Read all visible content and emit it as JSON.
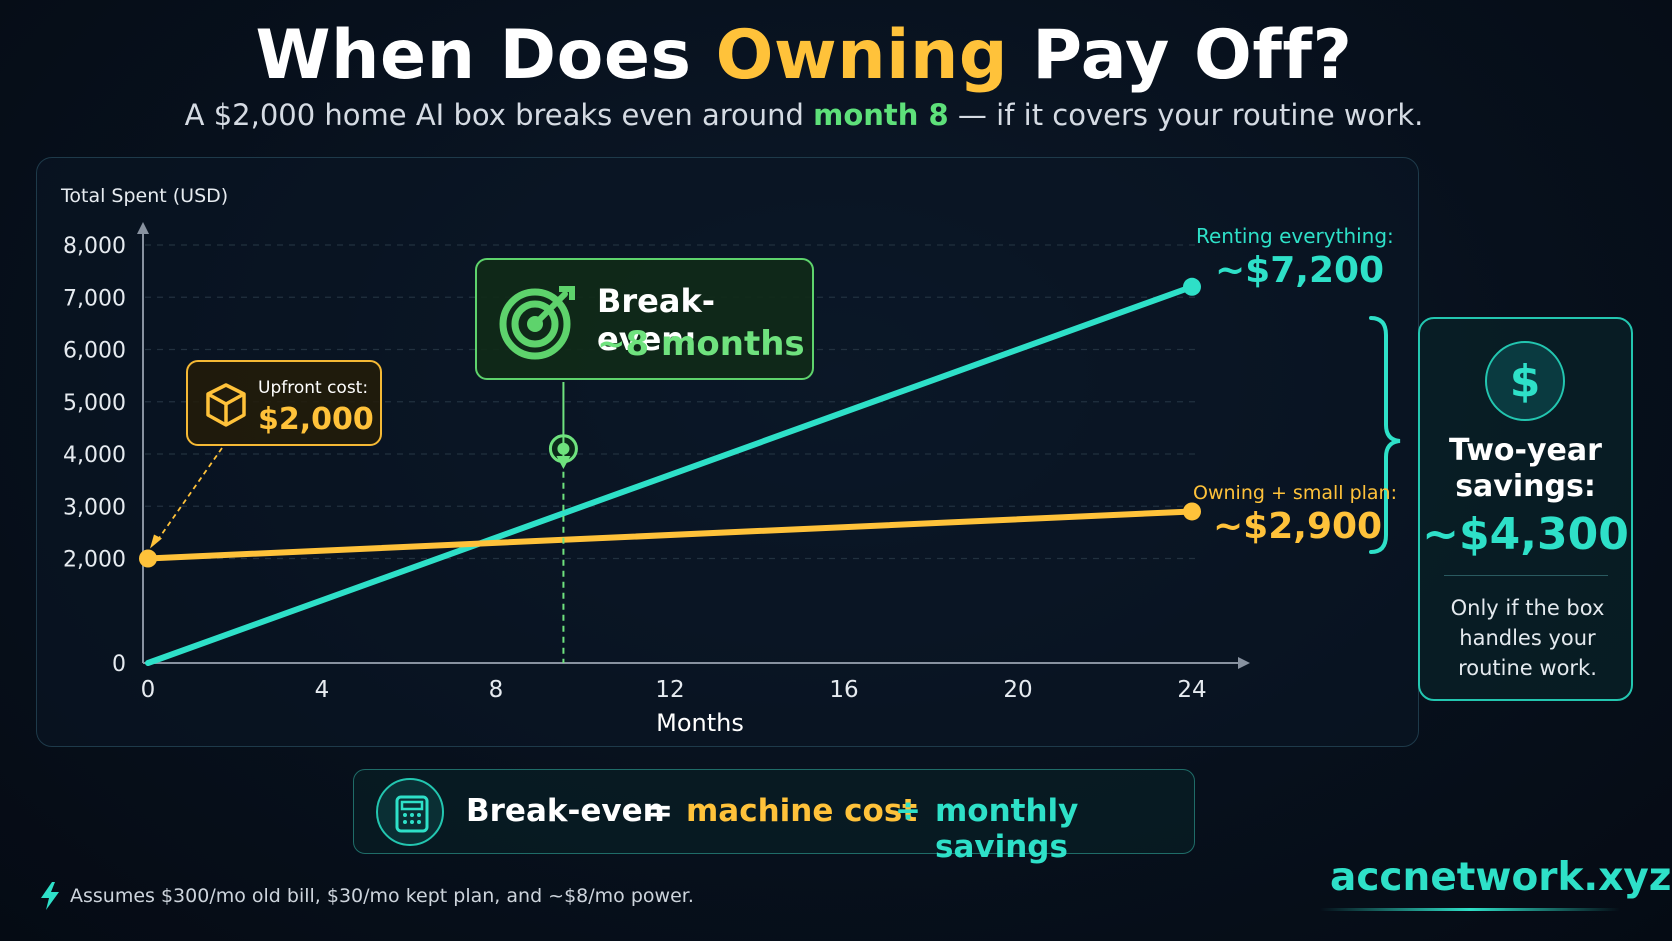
{
  "header": {
    "title_pre": "When Does ",
    "title_highlight": "Owning",
    "title_post": " Pay Off?",
    "subtitle_pre": "A $2,000 home AI box breaks even around ",
    "subtitle_highlight": "month 8",
    "subtitle_post": " — if it covers your routine work."
  },
  "chart_data": {
    "type": "line",
    "ylabel": "Total Spent (USD)",
    "xlabel": "Months",
    "ylim": [
      0,
      8000
    ],
    "xlim": [
      0,
      24
    ],
    "yticks": [
      "0",
      "2,000",
      "3,000",
      "4,000",
      "5,000",
      "6,000",
      "7,000",
      "8,000"
    ],
    "ytick_values": [
      0,
      2000,
      3000,
      4000,
      5000,
      6000,
      7000,
      8000
    ],
    "xticks": [
      "0",
      "4",
      "8",
      "12",
      "16",
      "20",
      "24"
    ],
    "xtick_values": [
      0,
      4,
      8,
      12,
      16,
      20,
      24
    ],
    "grid": "horizontal dashed",
    "series": [
      {
        "name": "Renting everything:",
        "color": "#2ee0c8",
        "x": [
          0,
          24
        ],
        "y": [
          0,
          7200
        ],
        "end_label": "~$7,200"
      },
      {
        "name": "Owning + small plan:",
        "color": "#ffc23a",
        "x": [
          0,
          24
        ],
        "y": [
          2000,
          2900
        ],
        "end_label": "~$2,900"
      }
    ],
    "break_even": {
      "x": 8,
      "y": 2400,
      "color": "#6fe27e"
    }
  },
  "annotations": {
    "upfront_label": "Upfront cost:",
    "upfront_value": "$2,000",
    "break_even_label": "Break-even:",
    "break_even_value": "~8 months"
  },
  "savings": {
    "icon": "dollar-icon",
    "symbol": "$",
    "title": "Two-year savings:",
    "value": "~$4,300",
    "note": "Only if the box handles your routine work."
  },
  "formula": {
    "icon": "calculator-icon",
    "term1": "Break-even",
    "equals": "=",
    "term2": "machine cost",
    "divide": "÷",
    "term3": "monthly savings"
  },
  "footer": {
    "icon": "lightning-icon",
    "note": "Assumes $300/mo old bill, $30/mo kept plan, and ~$8/mo power.",
    "brand": "accnetwork.xyz"
  }
}
